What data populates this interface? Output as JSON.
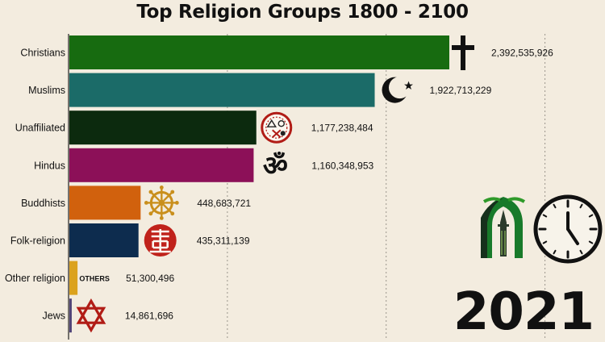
{
  "chart_data": {
    "type": "bar",
    "orientation": "horizontal",
    "title": "Top Religion Groups 1800 - 2100",
    "year": "2021",
    "categories": [
      "Christians",
      "Muslims",
      "Unaffiliated",
      "Hindus",
      "Buddhists",
      "Folk-religion",
      "Other religion",
      "Jews"
    ],
    "values": [
      2392535926,
      1922713229,
      1177238484,
      1160348953,
      448683721,
      435311139,
      51300496,
      14861696
    ],
    "value_labels": [
      "2,392,535,926",
      "1,922,713,229",
      "1,177,238,484",
      "1,160,348,953",
      "448,683,721",
      "435,311,139",
      "51,300,496",
      "14,861,696"
    ],
    "colors": [
      "#176b10",
      "#1b6b68",
      "#0c2a0e",
      "#8c1058",
      "#d1610d",
      "#0d2c4e",
      "#dba21d",
      "#4f4377"
    ],
    "icons": [
      "latin-cross-icon",
      "crescent-star-icon",
      "unaffiliated-icon",
      "om-icon",
      "dharma-wheel-icon",
      "shou-symbol-icon",
      "others-text-icon",
      "star-of-david-icon"
    ],
    "icon_labels": [
      "",
      "",
      "",
      "",
      "",
      "",
      "OTHERS",
      ""
    ],
    "grid": true,
    "grid_style": "dashed vertical"
  }
}
